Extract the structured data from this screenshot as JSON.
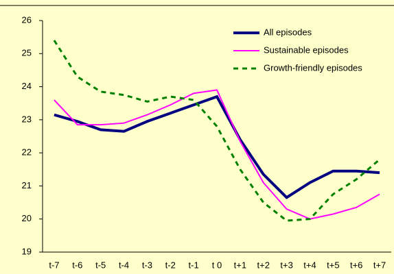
{
  "chart_data": {
    "type": "line",
    "categories": [
      "t-7",
      "t-6",
      "t-5",
      "t-4",
      "t-3",
      "t-2",
      "t-1",
      "t 0",
      "t+1",
      "t+2",
      "t+3",
      "t+4",
      "t+5",
      "t+6",
      "t+7"
    ],
    "series": [
      {
        "name": "All episodes",
        "color": "#000080",
        "values": [
          23.15,
          22.95,
          22.7,
          22.65,
          22.95,
          23.2,
          23.45,
          23.7,
          22.4,
          21.35,
          20.65,
          21.1,
          21.45,
          21.45,
          21.4
        ]
      },
      {
        "name": "Sustainable episodes",
        "color": "#ff00ff",
        "values": [
          23.6,
          22.85,
          22.85,
          22.9,
          23.15,
          23.45,
          23.8,
          23.9,
          22.35,
          21.1,
          20.3,
          20.0,
          20.15,
          20.35,
          20.75
        ]
      },
      {
        "name": "Growth-friendly episodes",
        "color": "#008000",
        "values": [
          25.4,
          24.3,
          23.85,
          23.75,
          23.55,
          23.7,
          23.6,
          22.8,
          21.5,
          20.5,
          19.95,
          20.0,
          20.75,
          21.2,
          21.8
        ]
      }
    ],
    "ylim": [
      19,
      26
    ],
    "yticks": [
      19,
      20,
      21,
      22,
      23,
      24,
      25,
      26
    ],
    "grid": false,
    "legend": "upper right"
  }
}
